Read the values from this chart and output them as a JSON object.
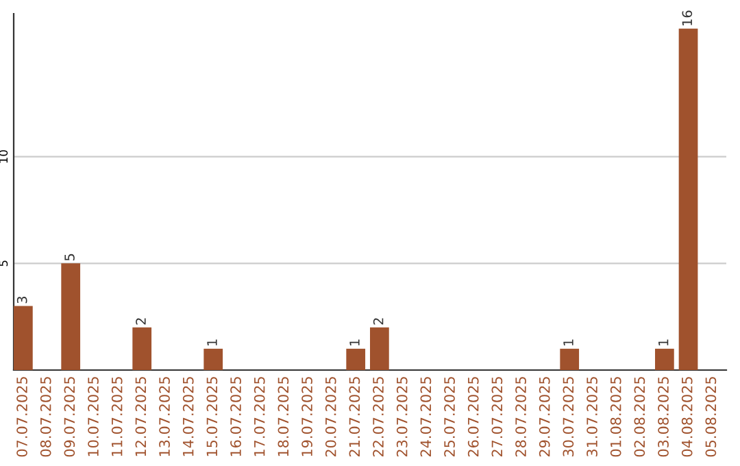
{
  "chart_data": {
    "type": "bar",
    "categories": [
      "07.07.2025",
      "08.07.2025",
      "09.07.2025",
      "10.07.2025",
      "11.07.2025",
      "12.07.2025",
      "13.07.2025",
      "14.07.2025",
      "15.07.2025",
      "16.07.2025",
      "17.07.2025",
      "18.07.2025",
      "19.07.2025",
      "20.07.2025",
      "21.07.2025",
      "22.07.2025",
      "23.07.2025",
      "24.07.2025",
      "25.07.2025",
      "26.07.2025",
      "27.07.2025",
      "28.07.2025",
      "29.07.2025",
      "30.07.2025",
      "31.07.2025",
      "01.08.2025",
      "02.08.2025",
      "03.08.2025",
      "04.08.2025",
      "05.08.2025"
    ],
    "values": [
      3,
      0,
      5,
      0,
      0,
      2,
      0,
      0,
      1,
      0,
      0,
      0,
      0,
      0,
      1,
      2,
      0,
      0,
      0,
      0,
      0,
      0,
      0,
      1,
      0,
      0,
      0,
      1,
      16,
      0
    ],
    "value_labels": [
      "3",
      null,
      "5",
      null,
      null,
      "2",
      null,
      null,
      "1",
      null,
      null,
      null,
      null,
      null,
      "1",
      "2",
      null,
      null,
      null,
      null,
      null,
      null,
      null,
      "1",
      null,
      null,
      null,
      "1",
      "16",
      null
    ],
    "color": "#a0522d",
    "ylim": [
      0,
      16.7
    ],
    "yticks": [
      5,
      10
    ],
    "grid": "y"
  }
}
